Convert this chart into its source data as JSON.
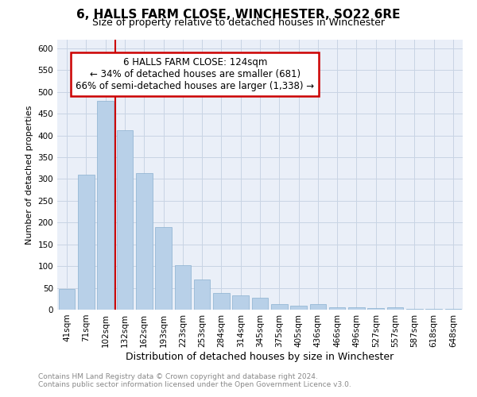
{
  "title": "6, HALLS FARM CLOSE, WINCHESTER, SO22 6RE",
  "subtitle": "Size of property relative to detached houses in Winchester",
  "xlabel": "Distribution of detached houses by size in Winchester",
  "ylabel": "Number of detached properties",
  "categories": [
    "41sqm",
    "71sqm",
    "102sqm",
    "132sqm",
    "162sqm",
    "193sqm",
    "223sqm",
    "253sqm",
    "284sqm",
    "314sqm",
    "345sqm",
    "375sqm",
    "405sqm",
    "436sqm",
    "466sqm",
    "496sqm",
    "527sqm",
    "557sqm",
    "587sqm",
    "618sqm",
    "648sqm"
  ],
  "values": [
    47,
    310,
    480,
    413,
    313,
    190,
    103,
    70,
    38,
    33,
    28,
    13,
    10,
    13,
    6,
    5,
    4,
    5,
    1,
    1,
    2
  ],
  "bar_color": "#b8d0e8",
  "bar_edge_color": "#8ab0d0",
  "grid_color": "#c8d4e4",
  "background_color": "#eaeff8",
  "annotation_box_text": "6 HALLS FARM CLOSE: 124sqm\n← 34% of detached houses are smaller (681)\n66% of semi-detached houses are larger (1,338) →",
  "annotation_box_color": "#cc0000",
  "ylim": [
    0,
    620
  ],
  "yticks": [
    0,
    50,
    100,
    150,
    200,
    250,
    300,
    350,
    400,
    450,
    500,
    550,
    600
  ],
  "footer_line1": "Contains HM Land Registry data © Crown copyright and database right 2024.",
  "footer_line2": "Contains public sector information licensed under the Open Government Licence v3.0.",
  "title_fontsize": 11,
  "subtitle_fontsize": 9,
  "xlabel_fontsize": 9,
  "ylabel_fontsize": 8,
  "tick_fontsize": 7.5,
  "footer_fontsize": 6.5,
  "annotation_fontsize": 8.5
}
